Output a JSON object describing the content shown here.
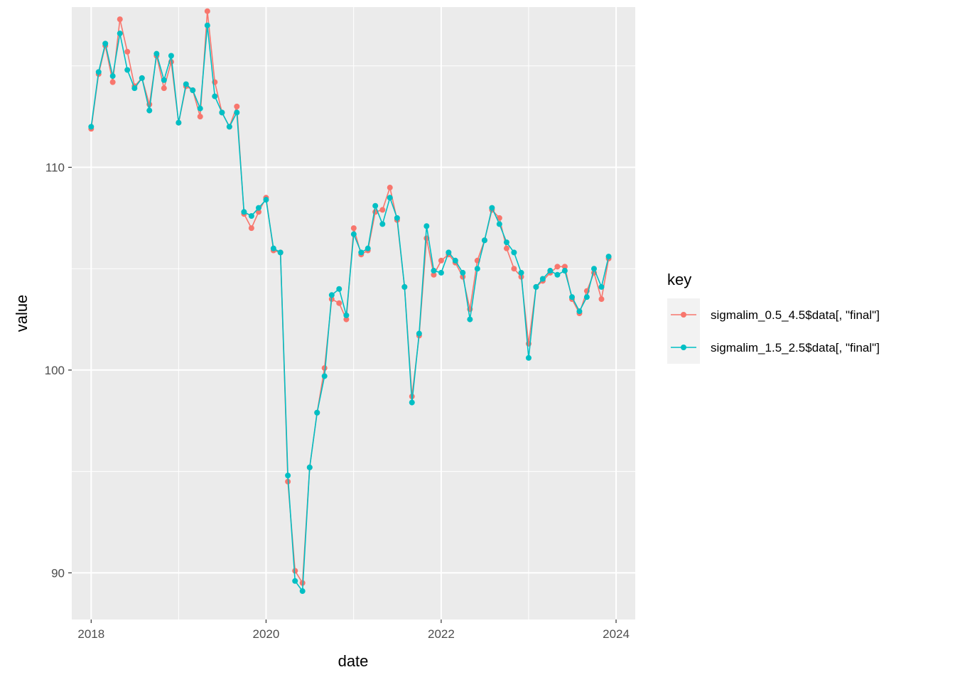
{
  "chart_data": {
    "type": "line",
    "xlabel": "date",
    "ylabel": "value",
    "x_ticks": [
      "2018",
      "2020",
      "2022",
      "2024"
    ],
    "x_tick_values": [
      "2018-01-01",
      "2020-01-01",
      "2022-01-01",
      "2024-01-01"
    ],
    "y_ticks": [
      "90",
      "100",
      "110"
    ],
    "y_tick_values": [
      90,
      100,
      110
    ],
    "xlim": [
      "2017-10-12",
      "2024-03-21"
    ],
    "ylim": [
      87.7,
      117.9
    ],
    "grid": true,
    "legend": {
      "title": "key",
      "position": "right"
    },
    "x": [
      "2018-01-01",
      "2018-02-01",
      "2018-03-01",
      "2018-04-01",
      "2018-05-01",
      "2018-06-01",
      "2018-07-01",
      "2018-08-01",
      "2018-09-01",
      "2018-10-01",
      "2018-11-01",
      "2018-12-01",
      "2019-01-01",
      "2019-02-01",
      "2019-03-01",
      "2019-04-01",
      "2019-05-01",
      "2019-06-01",
      "2019-07-01",
      "2019-08-01",
      "2019-09-01",
      "2019-10-01",
      "2019-11-01",
      "2019-12-01",
      "2020-01-01",
      "2020-02-01",
      "2020-03-01",
      "2020-04-01",
      "2020-05-01",
      "2020-06-01",
      "2020-07-01",
      "2020-08-01",
      "2020-09-01",
      "2020-10-01",
      "2020-11-01",
      "2020-12-01",
      "2021-01-01",
      "2021-02-01",
      "2021-03-01",
      "2021-04-01",
      "2021-05-01",
      "2021-06-01",
      "2021-07-01",
      "2021-08-01",
      "2021-09-01",
      "2021-10-01",
      "2021-11-01",
      "2021-12-01",
      "2022-01-01",
      "2022-02-01",
      "2022-03-01",
      "2022-04-01",
      "2022-05-01",
      "2022-06-01",
      "2022-07-01",
      "2022-08-01",
      "2022-09-01",
      "2022-10-01",
      "2022-11-01",
      "2022-12-01",
      "2023-01-01",
      "2023-02-01",
      "2023-03-01",
      "2023-04-01",
      "2023-05-01",
      "2023-06-01",
      "2023-07-01",
      "2023-08-01",
      "2023-09-01",
      "2023-10-01",
      "2023-11-01",
      "2023-12-01"
    ],
    "series": [
      {
        "name": "sigmalim_0.5_4.5$data[, \"final\"]",
        "color": "#F8766D",
        "values": [
          111.9,
          114.6,
          116.0,
          114.2,
          117.3,
          115.7,
          114.0,
          114.4,
          113.1,
          115.5,
          113.9,
          115.2,
          112.2,
          114.0,
          113.8,
          112.5,
          117.7,
          114.2,
          112.7,
          112.0,
          113.0,
          107.7,
          107.0,
          107.8,
          108.5,
          105.9,
          105.8,
          94.5,
          90.1,
          89.5,
          95.2,
          97.9,
          100.1,
          103.5,
          103.3,
          102.5,
          107.0,
          105.7,
          105.9,
          107.8,
          107.9,
          109.0,
          107.4,
          104.1,
          98.7,
          101.7,
          106.5,
          104.7,
          105.4,
          105.7,
          105.3,
          104.6,
          103.0,
          105.4,
          106.4,
          107.9,
          107.5,
          106.0,
          105.0,
          104.6,
          101.3,
          104.1,
          104.4,
          104.8,
          105.1,
          105.1,
          103.5,
          102.8,
          103.9,
          104.8,
          103.5,
          105.5
        ]
      },
      {
        "name": "sigmalim_1.5_2.5$data[, \"final\"]",
        "color": "#00BFC4",
        "values": [
          112.0,
          114.7,
          116.1,
          114.5,
          116.6,
          114.8,
          113.9,
          114.4,
          112.8,
          115.6,
          114.3,
          115.5,
          112.2,
          114.1,
          113.8,
          112.9,
          117.0,
          113.5,
          112.7,
          112.0,
          112.7,
          107.8,
          107.6,
          108.0,
          108.4,
          106.0,
          105.8,
          94.8,
          89.6,
          89.1,
          95.2,
          97.9,
          99.7,
          103.7,
          104.0,
          102.7,
          106.7,
          105.8,
          106.0,
          108.1,
          107.2,
          108.5,
          107.5,
          104.1,
          98.4,
          101.8,
          107.1,
          104.9,
          104.8,
          105.8,
          105.4,
          104.8,
          102.5,
          105.0,
          106.4,
          108.0,
          107.2,
          106.3,
          105.8,
          104.8,
          100.6,
          104.1,
          104.5,
          104.9,
          104.7,
          104.9,
          103.6,
          102.9,
          103.6,
          105.0,
          104.1,
          105.6
        ]
      }
    ]
  }
}
